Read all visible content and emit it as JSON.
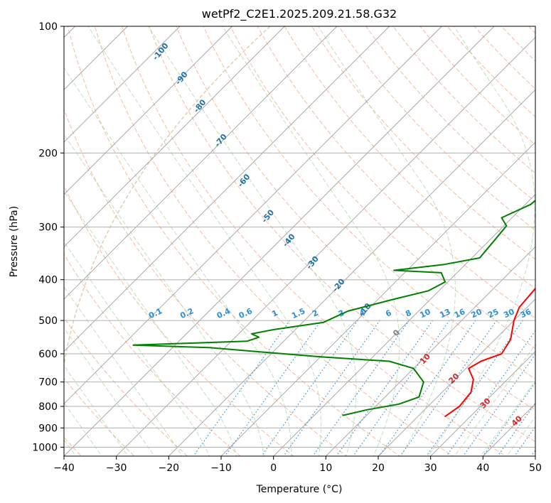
{
  "chart_data": {
    "type": "line",
    "title": "wetPf2_C2E1.2025.209.21.58.G32",
    "xlabel": "Temperature (°C)",
    "ylabel": "Pressure (hPa)",
    "xlim": [
      -40,
      50
    ],
    "ylim": [
      1050,
      100
    ],
    "yscale": "log",
    "grid": true,
    "x_ticks": [
      -40,
      -30,
      -20,
      -10,
      0,
      10,
      20,
      30,
      40,
      50
    ],
    "x_tick_labels": [
      "−40",
      "−30",
      "−20",
      "−10",
      "0",
      "10",
      "20",
      "30",
      "40",
      "50"
    ],
    "y_ticks": [
      100,
      200,
      300,
      400,
      500,
      600,
      700,
      800,
      900,
      1000
    ],
    "y_tick_labels": [
      "100",
      "200",
      "300",
      "400",
      "500",
      "600",
      "700",
      "800",
      "900",
      "1000"
    ],
    "series": [
      {
        "color": "#ff0000",
        "points": [
          [
            25.2,
            845
          ],
          [
            26,
            800
          ],
          [
            25.5,
            740
          ],
          [
            23.5,
            690
          ],
          [
            20.5,
            650
          ],
          [
            21.5,
            625
          ],
          [
            24,
            600
          ],
          [
            23,
            555
          ],
          [
            20,
            500
          ],
          [
            18.5,
            465
          ],
          [
            18,
            420
          ],
          [
            17,
            370
          ],
          [
            15,
            340
          ],
          [
            12.5,
            300
          ],
          [
            11,
            270
          ],
          [
            8.5,
            245
          ],
          [
            6,
            220
          ],
          [
            3.5,
            190
          ],
          [
            1.5,
            165
          ],
          [
            0,
            145
          ],
          [
            1,
            125
          ],
          [
            5,
            110
          ],
          [
            7,
            100
          ]
        ]
      },
      {
        "color": "#008000",
        "points": [
          [
            5.5,
            840
          ],
          [
            9,
            815
          ],
          [
            14,
            790
          ],
          [
            16.5,
            760
          ],
          [
            14.5,
            700
          ],
          [
            10,
            650
          ],
          [
            4,
            625
          ],
          [
            -10,
            610
          ],
          [
            -33,
            580
          ],
          [
            -48,
            572
          ],
          [
            -27,
            560
          ],
          [
            -25.5,
            548
          ],
          [
            -27.5,
            538
          ],
          [
            -24,
            525
          ],
          [
            -16,
            505
          ],
          [
            -13.5,
            475
          ],
          [
            -7,
            445
          ],
          [
            -2,
            425
          ],
          [
            -0.5,
            405
          ],
          [
            -3,
            385
          ],
          [
            -12.5,
            380
          ],
          [
            -4,
            368
          ],
          [
            1.5,
            355
          ],
          [
            1,
            325
          ],
          [
            0.5,
            298
          ],
          [
            -2,
            285
          ],
          [
            1,
            265
          ],
          [
            1.5,
            245
          ],
          [
            1.5,
            210
          ],
          [
            1,
            180
          ],
          [
            -1,
            160
          ],
          [
            -1.5,
            140
          ],
          [
            -1,
            120
          ],
          [
            2,
            105
          ],
          [
            3,
            100
          ]
        ]
      }
    ],
    "annotations": {
      "dry_adiabat_labels": [
        {
          "text": "-100",
          "x": -21.5,
          "y": 115
        },
        {
          "text": "-90",
          "x": -17.5,
          "y": 133
        },
        {
          "text": "-80",
          "x": -14,
          "y": 155
        },
        {
          "text": "-70",
          "x": -10,
          "y": 187
        },
        {
          "text": "-60",
          "x": -5.6,
          "y": 233
        },
        {
          "text": "-50",
          "x": -1,
          "y": 283
        },
        {
          "text": "-40",
          "x": 3,
          "y": 323
        },
        {
          "text": "-30",
          "x": 7.5,
          "y": 365
        },
        {
          "text": "-20",
          "x": 12.5,
          "y": 413
        },
        {
          "text": "-10",
          "x": 17.5,
          "y": 472
        }
      ],
      "moist_adiabat_labels": [
        {
          "text": "0",
          "x": 23.5,
          "y": 536
        },
        {
          "text": "10",
          "x": 29,
          "y": 618
        },
        {
          "text": "20",
          "x": 34.5,
          "y": 688
        },
        {
          "text": "30",
          "x": 40.5,
          "y": 788
        },
        {
          "text": "40",
          "x": 46.5,
          "y": 868
        }
      ],
      "mixing_ratio_labels": [
        {
          "text": "0.1",
          "x": -22.5,
          "y": 482
        },
        {
          "text": "0.2",
          "x": -16.5,
          "y": 482
        },
        {
          "text": "0.4",
          "x": -9.5,
          "y": 482
        },
        {
          "text": "0.6",
          "x": -5.3,
          "y": 482
        },
        {
          "text": "1",
          "x": 0.3,
          "y": 482
        },
        {
          "text": "1.5",
          "x": 4.8,
          "y": 482
        },
        {
          "text": "2",
          "x": 8,
          "y": 482
        },
        {
          "text": "3",
          "x": 13,
          "y": 482
        },
        {
          "text": "4",
          "x": 17,
          "y": 482
        },
        {
          "text": "6",
          "x": 22,
          "y": 482
        },
        {
          "text": "8",
          "x": 25.8,
          "y": 482
        },
        {
          "text": "10",
          "x": 29,
          "y": 482
        },
        {
          "text": "13",
          "x": 32.8,
          "y": 482
        },
        {
          "text": "16",
          "x": 35.6,
          "y": 482
        },
        {
          "text": "20",
          "x": 38.8,
          "y": 482
        },
        {
          "text": "25",
          "x": 42,
          "y": 482
        },
        {
          "text": "30",
          "x": 45,
          "y": 482
        },
        {
          "text": "36",
          "x": 48.2,
          "y": 482
        }
      ]
    },
    "colors": {
      "dry_adiabat_line": "#f5a27f",
      "dry_adiabat_label": "#1f6fa8",
      "moist_adiabat_line": "#9fd49f",
      "moist_adiabat_label": "#d62728",
      "zero_moist_label": "#808080",
      "mixing_ratio_line": "#2e8fd6",
      "mixing_ratio_label": "#2e8fd6",
      "skewed_isotherm": "#a0a0a0",
      "background_curve": "#d9b88c"
    }
  }
}
